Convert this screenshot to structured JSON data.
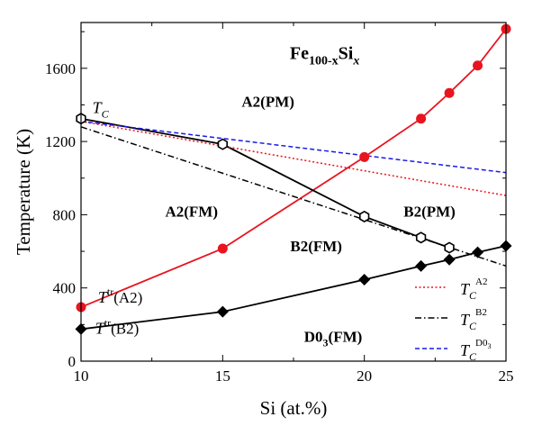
{
  "chart_data": {
    "type": "line",
    "title": "Fe",
    "title_sub": "100-x",
    "title_mid": "Si",
    "title_var": "x",
    "xlabel": "Si (at.%)",
    "ylabel": "Temperature (K)",
    "xlim": [
      10,
      25
    ],
    "ylim": [
      0,
      1850
    ],
    "x_ticks": [
      10,
      15,
      20,
      25
    ],
    "x_tick_labels": [
      "10",
      "15",
      "20",
      "25"
    ],
    "y_ticks": [
      0,
      400,
      800,
      1200,
      1600
    ],
    "y_tick_labels": [
      "0",
      "400",
      "800",
      "1200",
      "1600"
    ],
    "grid": false,
    "legend_position": "bottom-right",
    "legend": [
      {
        "sym": "T",
        "sub": "C",
        "sup": "A2",
        "color": "#e8141e",
        "dash": "2,2.5"
      },
      {
        "sym": "T",
        "sub": "C",
        "sup": "B2",
        "color": "#000000",
        "dash": "7,3,1.5,3"
      },
      {
        "sym": "T",
        "sub": "C",
        "sup": "D0",
        "sup_sub": "3",
        "color": "#1a1ae6",
        "dash": "5,3"
      }
    ],
    "series": [
      {
        "id": "t-tr-a2",
        "color": "#e8141e",
        "marker": "filled-circle",
        "x": [
          10,
          15,
          20,
          22,
          23,
          24,
          25
        ],
        "y": [
          295,
          615,
          1115,
          1325,
          1465,
          1615,
          1815
        ]
      },
      {
        "id": "t-tr-b2",
        "color": "#000000",
        "marker": "filled-diamond",
        "x": [
          10,
          15,
          20,
          22,
          23,
          24,
          25
        ],
        "y": [
          175,
          270,
          445,
          520,
          555,
          595,
          630
        ]
      },
      {
        "id": "tc-measured",
        "color": "#000000",
        "marker": "open-hexagon",
        "x": [
          10,
          15,
          20,
          22,
          23
        ],
        "y": [
          1325,
          1185,
          790,
          675,
          620
        ]
      },
      {
        "id": "tc-a2-model",
        "color": "#e8141e",
        "dash": "2,2.5",
        "marker": "none",
        "x": [
          10,
          25
        ],
        "y": [
          1310,
          905
        ]
      },
      {
        "id": "tc-b2-model",
        "color": "#000000",
        "dash": "7,3,1.5,3",
        "marker": "none",
        "x": [
          10,
          25
        ],
        "y": [
          1280,
          520
        ]
      },
      {
        "id": "tc-d03-model",
        "color": "#1a1ae6",
        "dash": "5,3",
        "marker": "none",
        "x": [
          10,
          25
        ],
        "y": [
          1310,
          1030
        ]
      }
    ],
    "annotations": [
      {
        "id": "tc",
        "sym": "T",
        "sub": "C",
        "x": 10.4,
        "y": 1355
      },
      {
        "id": "ttr-a2",
        "sym": "T",
        "sup": "tr",
        "text": "(A2)",
        "x": 10.6,
        "y": 320
      },
      {
        "id": "ttr-b2",
        "sym": "T",
        "sup": "tr",
        "text": "(B2)",
        "x": 10.5,
        "y": 150
      },
      {
        "id": "a2pm",
        "text": "A2(PM)",
        "x": 16.6,
        "y": 1390
      },
      {
        "id": "a2fm",
        "text": "A2(FM)",
        "x": 13.9,
        "y": 790
      },
      {
        "id": "b2pm",
        "text": "B2(PM)",
        "x": 22.3,
        "y": 790
      },
      {
        "id": "b2fm",
        "text": "B2(FM)",
        "x": 18.3,
        "y": 600
      },
      {
        "id": "d03fm",
        "text": "D0",
        "sub": "3",
        "tail": "(FM)",
        "x": 18.9,
        "y": 105
      }
    ]
  }
}
